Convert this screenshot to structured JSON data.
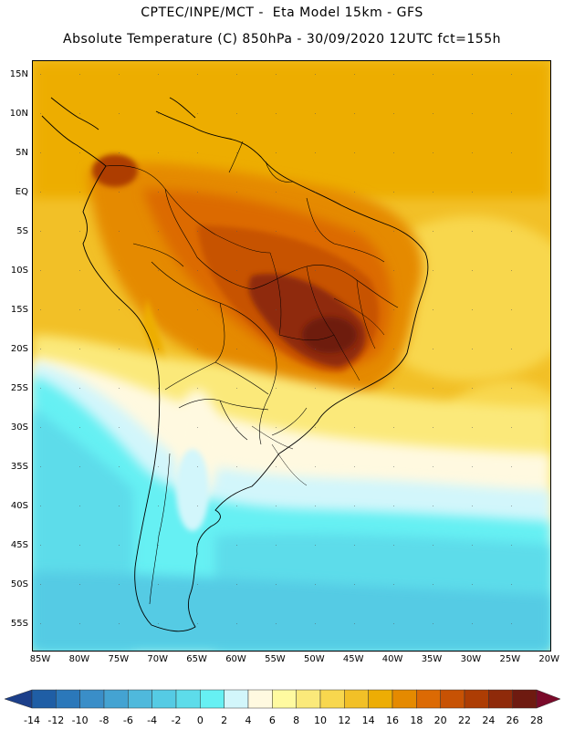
{
  "header": {
    "line1": "CPTEC/INPE/MCT -  Eta Model 15km - GFS",
    "line2": "Absolute Temperature (C) 850hPa - 30/09/2020 12UTC fct=155h"
  },
  "map": {
    "lat_labels": [
      "15N",
      "10N",
      "5N",
      "EQ",
      "5S",
      "10S",
      "15S",
      "20S",
      "25S",
      "30S",
      "35S",
      "40S",
      "45S",
      "50S",
      "55S"
    ],
    "lon_labels": [
      "85W",
      "80W",
      "75W",
      "70W",
      "65W",
      "60W",
      "55W",
      "50W",
      "45W",
      "40W",
      "35W",
      "30W",
      "25W",
      "20W"
    ]
  },
  "colorbar": {
    "labels": [
      "-14",
      "-12",
      "-10",
      "-8",
      "-6",
      "-4",
      "-2",
      "0",
      "2",
      "4",
      "6",
      "8",
      "10",
      "12",
      "14",
      "16",
      "18",
      "20",
      "22",
      "24",
      "26",
      "28"
    ],
    "colors": [
      "#1c3f8a",
      "#1f5ea5",
      "#2b78ba",
      "#3a8ec8",
      "#44a3d2",
      "#4fb9dc",
      "#55cbe4",
      "#5ddcea",
      "#66f0f3",
      "#d2f6fb",
      "#fff9e0",
      "#fffaa0",
      "#fbe97a",
      "#f8d74e",
      "#f2c027",
      "#edad04",
      "#e58a00",
      "#dc6a04",
      "#c75204",
      "#ad3d04",
      "#8f2a0a",
      "#6e1a10",
      "#7a0a2a"
    ]
  }
}
